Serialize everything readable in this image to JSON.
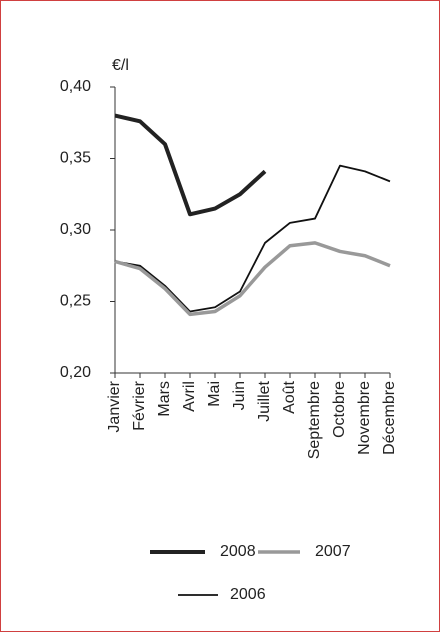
{
  "chart_data": {
    "type": "line",
    "y_unit": "€/l",
    "categories": [
      "Janvier",
      "Février",
      "Mars",
      "Avril",
      "Mai",
      "Juin",
      "Juillet",
      "Août",
      "Septembre",
      "Octobre",
      "Novembre",
      "Décembre"
    ],
    "series": [
      {
        "name": "2008",
        "color": "#222222",
        "linewidth": 4,
        "values": [
          0.38,
          0.376,
          0.36,
          0.311,
          0.315,
          0.325,
          0.341,
          null,
          null,
          null,
          null,
          null
        ]
      },
      {
        "name": "2007",
        "color": "#999999",
        "linewidth": 3.5,
        "values": [
          0.278,
          0.273,
          0.259,
          0.241,
          0.243,
          0.254,
          0.274,
          0.289,
          0.291,
          0.285,
          0.282,
          0.275
        ]
      },
      {
        "name": "2006",
        "color": "#111111",
        "linewidth": 1.8,
        "values": [
          0.278,
          0.275,
          0.261,
          0.243,
          0.246,
          0.257,
          0.291,
          0.305,
          0.308,
          0.345,
          0.341,
          0.334
        ]
      }
    ],
    "ylim": [
      0.2,
      0.4
    ],
    "yticks": [
      {
        "value": 0.2,
        "label": "0,20"
      },
      {
        "value": 0.25,
        "label": "0,25"
      },
      {
        "value": 0.3,
        "label": "0,30"
      },
      {
        "value": 0.35,
        "label": "0,35"
      },
      {
        "value": 0.4,
        "label": "0,40"
      }
    ]
  }
}
